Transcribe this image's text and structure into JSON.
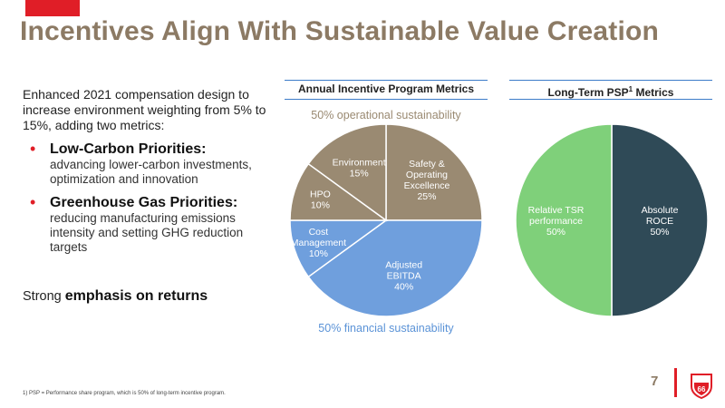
{
  "title": "Incentives Align With Sustainable Value Creation",
  "intro": "Enhanced 2021 compensation design to increase environment weighting from 5% to 15%, adding two metrics:",
  "bullets": [
    {
      "head": "Low-Carbon Priorities:",
      "desc": "advancing lower-carbon investments, optimization and innovation"
    },
    {
      "head": "Greenhouse Gas Priorities:",
      "desc": "reducing manufacturing emissions intensity and setting GHG reduction targets"
    }
  ],
  "strong_prefix": "Strong",
  "strong_bold": "emphasis on returns",
  "footnote": "1) PSP = Performance share program, which is 50% of long-term incentive program.",
  "page_number": "7",
  "logo_text": "66",
  "colors": {
    "title": "#8c7a64",
    "accent_red": "#e01e27",
    "header_rule": "#3d7cc9",
    "operational": "#9a8a72",
    "financial": "#6f9fdd",
    "tsr": "#7fd07a",
    "roce": "#2f4a57"
  },
  "chart_data": [
    {
      "type": "pie",
      "title": "Annual Incentive Program Metrics",
      "annotations": [
        "50% operational sustainability",
        "50% financial sustainability"
      ],
      "slices": [
        {
          "label": "Safety & Operating Excellence",
          "lines": [
            "Safety &",
            "Operating",
            "Excellence",
            "25%"
          ],
          "value": 25,
          "group": "operational"
        },
        {
          "label": "Adjusted EBITDA",
          "lines": [
            "Adjusted",
            "EBITDA",
            "40%"
          ],
          "value": 40,
          "group": "financial"
        },
        {
          "label": "Cost Management",
          "lines": [
            "Cost",
            "Management",
            "10%"
          ],
          "value": 10,
          "group": "financial"
        },
        {
          "label": "HPO",
          "lines": [
            "HPO",
            "10%"
          ],
          "value": 10,
          "group": "operational"
        },
        {
          "label": "Environment",
          "lines": [
            "Environment",
            "15%"
          ],
          "value": 15,
          "group": "operational"
        }
      ]
    },
    {
      "type": "pie",
      "title": "Long-Term PSP",
      "title_sup": "1",
      "title_suffix": " Metrics",
      "slices": [
        {
          "label": "Absolute ROCE",
          "lines": [
            "Absolute",
            "ROCE",
            "50%"
          ],
          "value": 50,
          "color": "#2f4a57"
        },
        {
          "label": "Relative TSR performance",
          "lines": [
            "Relative TSR",
            "performance",
            "50%"
          ],
          "value": 50,
          "color": "#7fd07a"
        }
      ]
    }
  ]
}
